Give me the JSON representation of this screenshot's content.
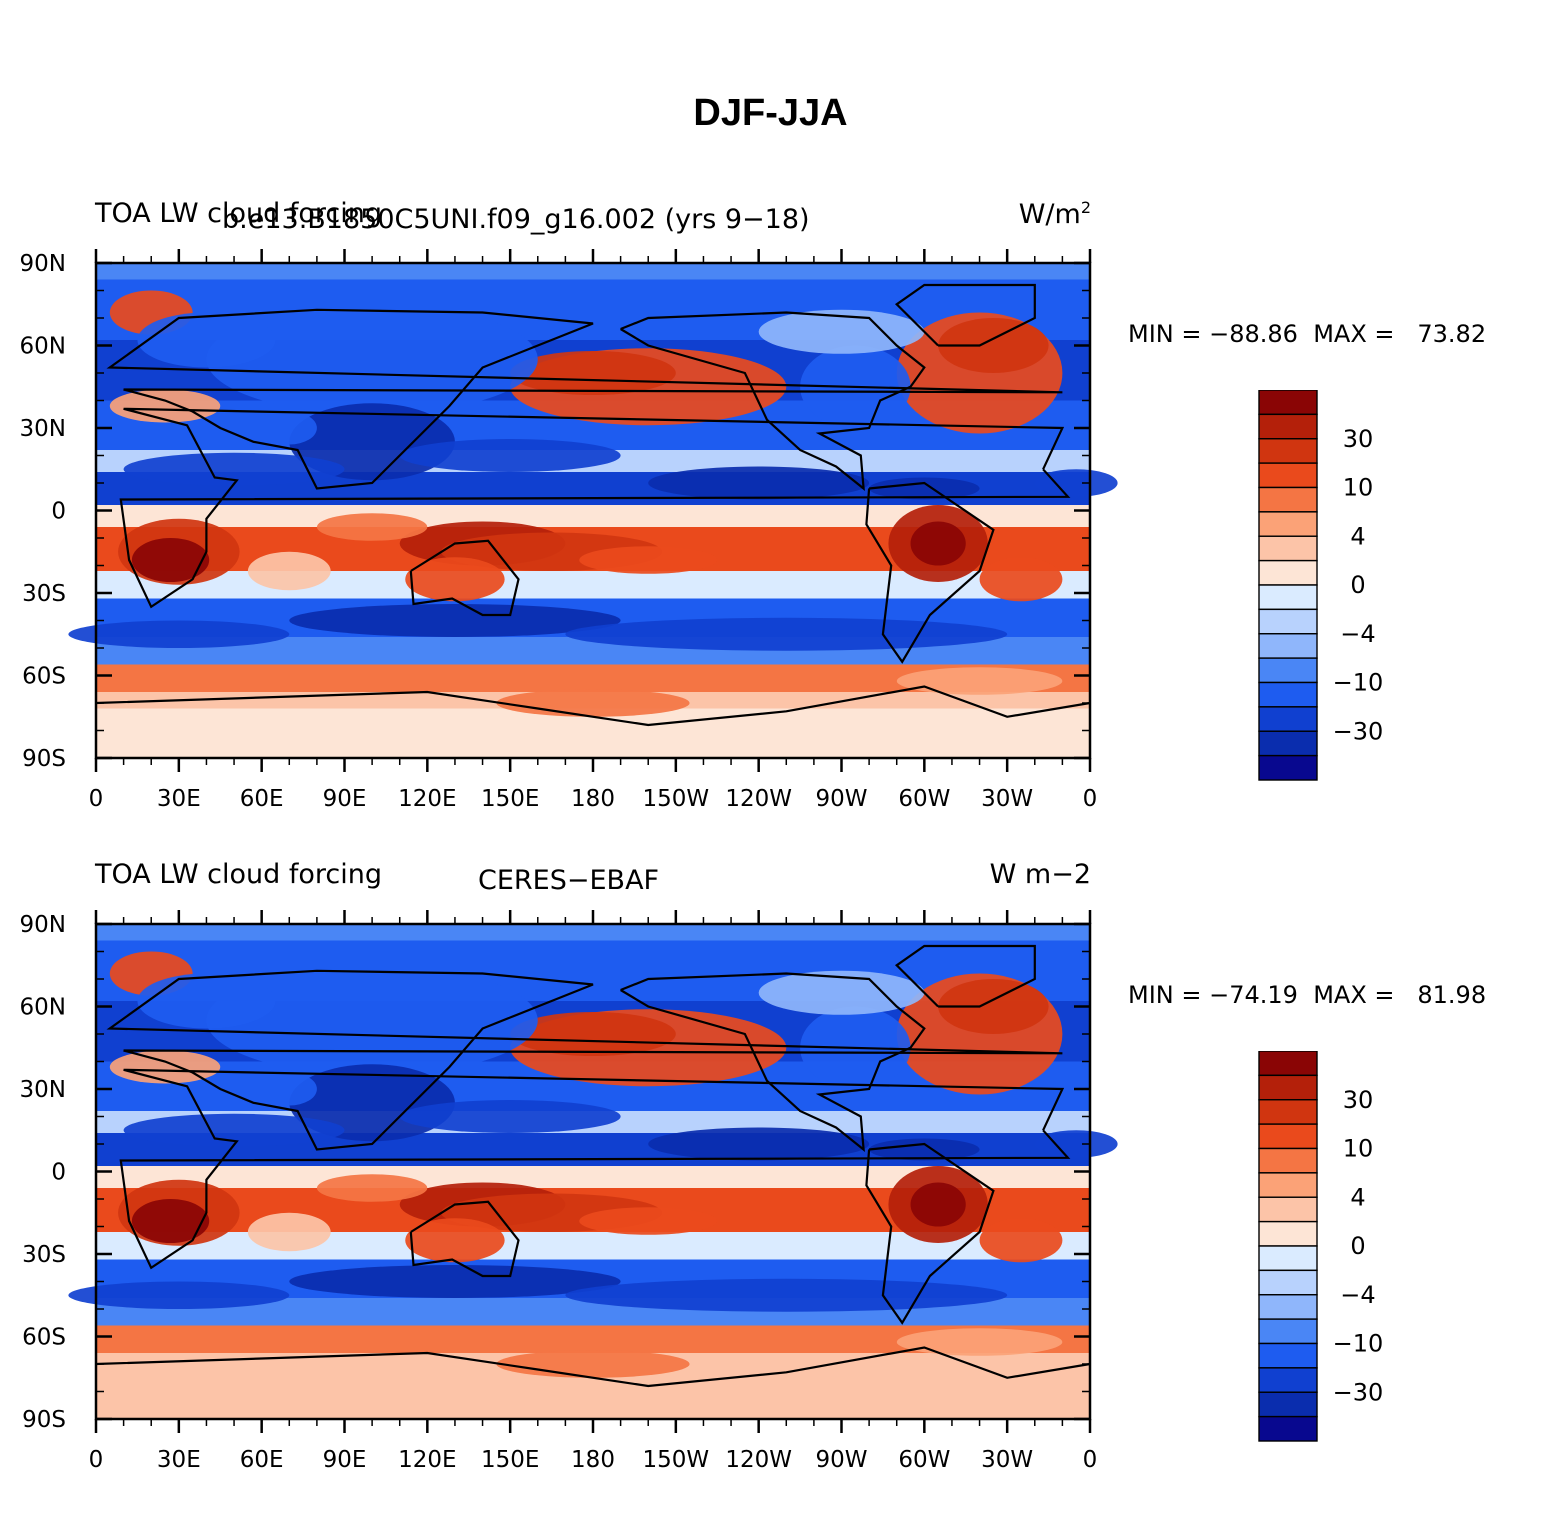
{
  "title": "DJF-JJA",
  "colors": {
    "levels": [
      "#08088f",
      "#0a2dae",
      "#1040d0",
      "#1e5cf0",
      "#4a86f5",
      "#8fb6fb",
      "#b8d2fd",
      "#daebff",
      "#fde5d6",
      "#fcc4a8",
      "#fba277",
      "#f47544",
      "#ea4a1c",
      "#d03510",
      "#b4200a",
      "#8a0505"
    ]
  },
  "panels": [
    {
      "left_label": "TOA  LW cloud forcing",
      "center_label": "b.e13.B1850C5UNI.f09_g16.002 (yrs 9−18)",
      "units": "W/m",
      "units_sup": "2",
      "min_text": "MIN = −88.86",
      "max_text": "MAX =   73.82",
      "lat_labels": [
        "90N",
        "60N",
        "30N",
        "0",
        "30S",
        "60S",
        "90S"
      ],
      "lon_labels": [
        "0",
        "30E",
        "60E",
        "90E",
        "120E",
        "150E",
        "180",
        "150W",
        "120W",
        "90W",
        "60W",
        "30W",
        "0"
      ],
      "colorbar_labels": [
        "30",
        "10",
        "4",
        "0",
        "−4",
        "−10",
        "−30"
      ]
    },
    {
      "left_label": "TOA LW cloud forcing",
      "center_label": "CERES−EBAF",
      "units": "W m−2",
      "units_sup": "",
      "min_text": "MIN = −74.19",
      "max_text": "MAX =   81.98",
      "lat_labels": [
        "90N",
        "60N",
        "30N",
        "0",
        "30S",
        "60S",
        "90S"
      ],
      "lon_labels": [
        "0",
        "30E",
        "60E",
        "90E",
        "120E",
        "150E",
        "180",
        "150W",
        "120W",
        "90W",
        "60W",
        "30W",
        "0"
      ],
      "colorbar_labels": [
        "30",
        "10",
        "4",
        "0",
        "−4",
        "−10",
        "−30"
      ]
    }
  ]
}
